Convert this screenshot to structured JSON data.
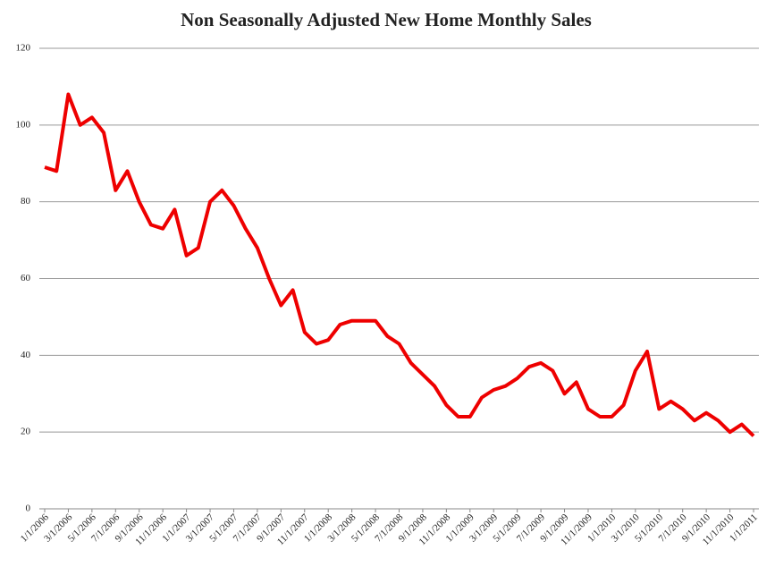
{
  "chart_data": {
    "type": "line",
    "title": "Non Seasonally Adjusted New Home Monthly Sales",
    "categories": [
      "1/1/2006",
      null,
      "3/1/2006",
      null,
      "5/1/2006",
      null,
      "7/1/2006",
      null,
      "9/1/2006",
      null,
      "11/1/2006",
      null,
      "1/1/2007",
      null,
      "3/1/2007",
      null,
      "5/1/2007",
      null,
      "7/1/2007",
      null,
      "9/1/2007",
      null,
      "11/1/2007",
      null,
      "1/1/2008",
      null,
      "3/1/2008",
      null,
      "5/1/2008",
      null,
      "7/1/2008",
      null,
      "9/1/2008",
      null,
      "11/1/2008",
      null,
      "1/1/2009",
      null,
      "3/1/2009",
      null,
      "5/1/2009",
      null,
      "7/1/2009",
      null,
      "9/1/2009",
      null,
      "11/1/2009",
      null,
      "1/1/2010",
      null,
      "3/1/2010",
      null,
      "5/1/2010",
      null,
      "7/1/2010",
      null,
      "9/1/2010",
      null,
      "11/1/2010",
      null,
      "1/1/2011"
    ],
    "values": [
      89,
      88,
      108,
      100,
      102,
      98,
      83,
      88,
      80,
      74,
      73,
      78,
      66,
      68,
      80,
      83,
      79,
      73,
      68,
      60,
      53,
      57,
      46,
      43,
      44,
      48,
      49,
      49,
      49,
      45,
      43,
      38,
      35,
      32,
      27,
      24,
      24,
      29,
      31,
      32,
      34,
      37,
      38,
      36,
      30,
      33,
      26,
      24,
      24,
      27,
      36,
      41,
      26,
      28,
      26,
      23,
      25,
      23,
      20,
      22,
      19
    ],
    "color": "#ee0000",
    "ylim": [
      0,
      120
    ],
    "yticks": [
      0,
      20,
      40,
      60,
      80,
      100,
      120
    ],
    "grid": true
  }
}
